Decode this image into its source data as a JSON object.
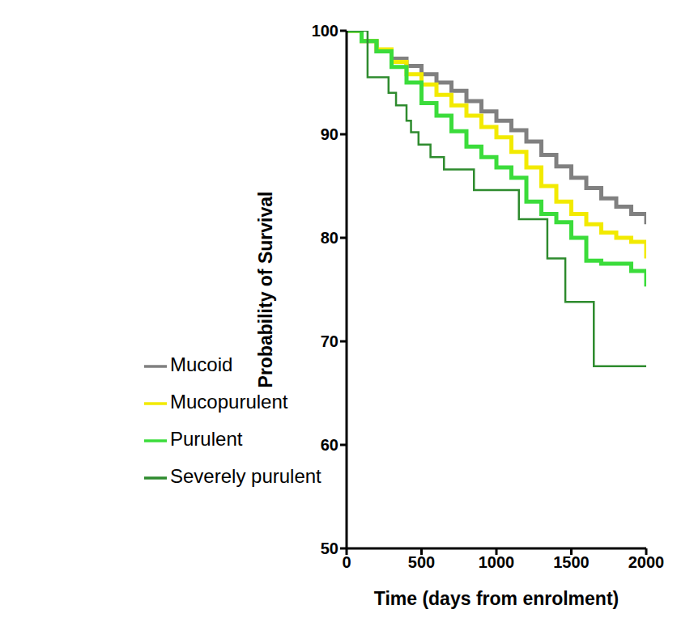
{
  "chart_data": {
    "type": "step",
    "title": null,
    "x_label": "Time (days from enrolment)",
    "y_label": "Probability of Survival",
    "xlim": [
      0,
      2000
    ],
    "xticks": [
      0,
      500,
      1000,
      1500,
      2000
    ],
    "ylim": [
      50,
      100
    ],
    "yticks": [
      50,
      60,
      70,
      80,
      90,
      100
    ],
    "grid": false,
    "legend": "lower left",
    "series": [
      {
        "name": "Mucoid",
        "color": "#808080",
        "x": [
          0,
          100,
          200,
          300,
          400,
          500,
          600,
          700,
          800,
          900,
          1000,
          1100,
          1200,
          1300,
          1400,
          1500,
          1600,
          1700,
          1800,
          1900,
          2000
        ],
        "values": [
          100,
          99,
          98,
          97.3,
          96.6,
          95.8,
          95,
          94.2,
          93.2,
          92.2,
          91.3,
          90.4,
          89.3,
          88,
          86.9,
          85.8,
          84.8,
          83.8,
          83,
          82.3,
          81.3
        ]
      },
      {
        "name": "Mucopurulent",
        "color": "#f2ea00",
        "x": [
          0,
          100,
          200,
          300,
          400,
          500,
          600,
          700,
          800,
          900,
          1000,
          1100,
          1200,
          1300,
          1400,
          1500,
          1600,
          1700,
          1800,
          1900,
          2000
        ],
        "values": [
          100,
          99,
          98.2,
          97,
          95.8,
          94.8,
          93.8,
          92.8,
          91.8,
          90.7,
          89.7,
          88.3,
          86.8,
          85,
          83.5,
          82.3,
          81.3,
          80.5,
          80,
          79.6,
          78
        ]
      },
      {
        "name": "Purulent",
        "color": "#3bdc3b",
        "x": [
          0,
          100,
          200,
          300,
          400,
          500,
          600,
          700,
          800,
          900,
          1000,
          1100,
          1200,
          1300,
          1400,
          1500,
          1600,
          1700,
          1800,
          1900,
          2000
        ],
        "values": [
          100,
          99,
          98,
          96.5,
          95,
          93,
          91.8,
          90.3,
          88.8,
          87.8,
          86.8,
          85.8,
          83.5,
          82.3,
          81.5,
          80,
          77.8,
          77.5,
          77.5,
          76.8,
          75.3
        ]
      },
      {
        "name": "Severely purulent",
        "color": "#2e8b2e",
        "x": [
          0,
          140,
          280,
          330,
          400,
          430,
          480,
          560,
          650,
          850,
          1150,
          1340,
          1460,
          1650,
          2000
        ],
        "values": [
          100,
          95.5,
          94,
          92.8,
          91.3,
          90.2,
          89,
          87.8,
          86.6,
          84.6,
          81.8,
          78,
          73.8,
          67.6,
          67.6
        ]
      }
    ]
  }
}
